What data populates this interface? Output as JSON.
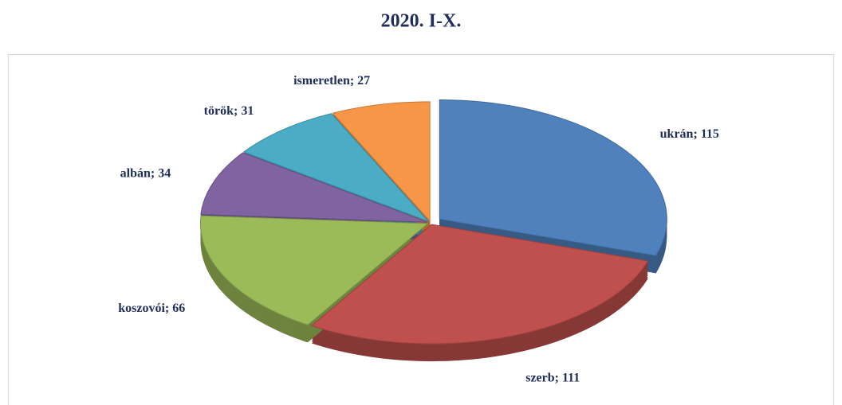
{
  "chart_data": {
    "type": "pie",
    "title": "2020. I-X.",
    "values": [
      115,
      111,
      66,
      34,
      31,
      27
    ],
    "value_labels": [
      "ukrán; 115",
      "szerb; 111",
      "koszovói; 66",
      "albán; 34",
      "török; 31",
      "ismeretlen; 27"
    ],
    "colors": [
      "#4f81bd",
      "#c0504d",
      "#9bbb59",
      "#8064a2",
      "#4bacc6",
      "#f79646"
    ]
  }
}
